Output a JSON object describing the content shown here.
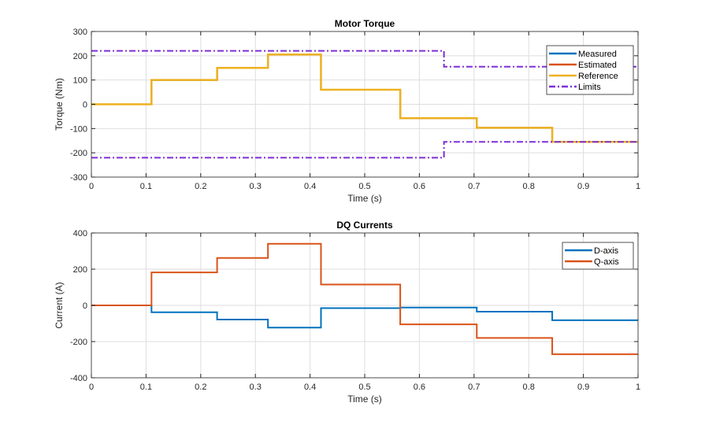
{
  "chart_data": [
    {
      "type": "line",
      "title": "Motor Torque",
      "xlabel": "Time (s)",
      "ylabel": "Torque (Nm)",
      "xlim": [
        0,
        1
      ],
      "ylim": [
        -300,
        300
      ],
      "grid": true,
      "legend_placement": "top-right",
      "xticks": [
        0,
        0.1,
        0.2,
        0.3,
        0.4,
        0.5,
        0.6,
        0.7,
        0.8,
        0.9,
        1
      ],
      "yticks": [
        -300,
        -200,
        -100,
        0,
        100,
        200,
        300
      ],
      "series": [
        {
          "name": "Measured",
          "color": "#0072BD",
          "style": "solid",
          "steps": [
            [
              0,
              0
            ],
            [
              0.11,
              100
            ],
            [
              0.23,
              150
            ],
            [
              0.323,
              205
            ],
            [
              0.42,
              60
            ],
            [
              0.565,
              -57
            ],
            [
              0.705,
              -97
            ],
            [
              0.843,
              -155
            ],
            [
              1,
              -155
            ]
          ]
        },
        {
          "name": "Estimated",
          "color": "#D95319",
          "style": "solid",
          "steps": [
            [
              0,
              0
            ],
            [
              0.11,
              100
            ],
            [
              0.23,
              150
            ],
            [
              0.323,
              205
            ],
            [
              0.42,
              60
            ],
            [
              0.565,
              -57
            ],
            [
              0.705,
              -97
            ],
            [
              0.843,
              -155
            ],
            [
              1,
              -155
            ]
          ]
        },
        {
          "name": "Reference",
          "color": "#EDB120",
          "style": "solid",
          "steps": [
            [
              0,
              0
            ],
            [
              0.11,
              100
            ],
            [
              0.23,
              150
            ],
            [
              0.323,
              205
            ],
            [
              0.42,
              60
            ],
            [
              0.565,
              -57
            ],
            [
              0.705,
              -97
            ],
            [
              0.843,
              -155
            ],
            [
              1,
              -155
            ]
          ]
        },
        {
          "name": "Limits",
          "color": "#7E2FD5",
          "style": "dashdot",
          "steps": [
            [
              0,
              220
            ],
            [
              0.645,
              155
            ],
            [
              1,
              155
            ]
          ],
          "mirror": true
        }
      ]
    },
    {
      "type": "line",
      "title": "DQ Currents",
      "xlabel": "Time (s)",
      "ylabel": "Current (A)",
      "xlim": [
        0,
        1
      ],
      "ylim": [
        -400,
        400
      ],
      "grid": true,
      "legend_placement": "top-right",
      "xticks": [
        0,
        0.1,
        0.2,
        0.3,
        0.4,
        0.5,
        0.6,
        0.7,
        0.8,
        0.9,
        1
      ],
      "yticks": [
        -400,
        -200,
        0,
        200,
        400
      ],
      "series": [
        {
          "name": "D-axis",
          "color": "#0072BD",
          "style": "solid",
          "steps": [
            [
              0,
              0
            ],
            [
              0.11,
              -38
            ],
            [
              0.23,
              -78
            ],
            [
              0.323,
              -123
            ],
            [
              0.42,
              -15
            ],
            [
              0.565,
              -12
            ],
            [
              0.705,
              -35
            ],
            [
              0.843,
              -82
            ],
            [
              1,
              -82
            ]
          ]
        },
        {
          "name": "Q-axis",
          "color": "#D95319",
          "style": "solid",
          "steps": [
            [
              0,
              0
            ],
            [
              0.11,
              182
            ],
            [
              0.23,
              262
            ],
            [
              0.323,
              340
            ],
            [
              0.42,
              115
            ],
            [
              0.565,
              -105
            ],
            [
              0.705,
              -180
            ],
            [
              0.843,
              -270
            ],
            [
              1,
              -270
            ]
          ]
        }
      ]
    }
  ]
}
